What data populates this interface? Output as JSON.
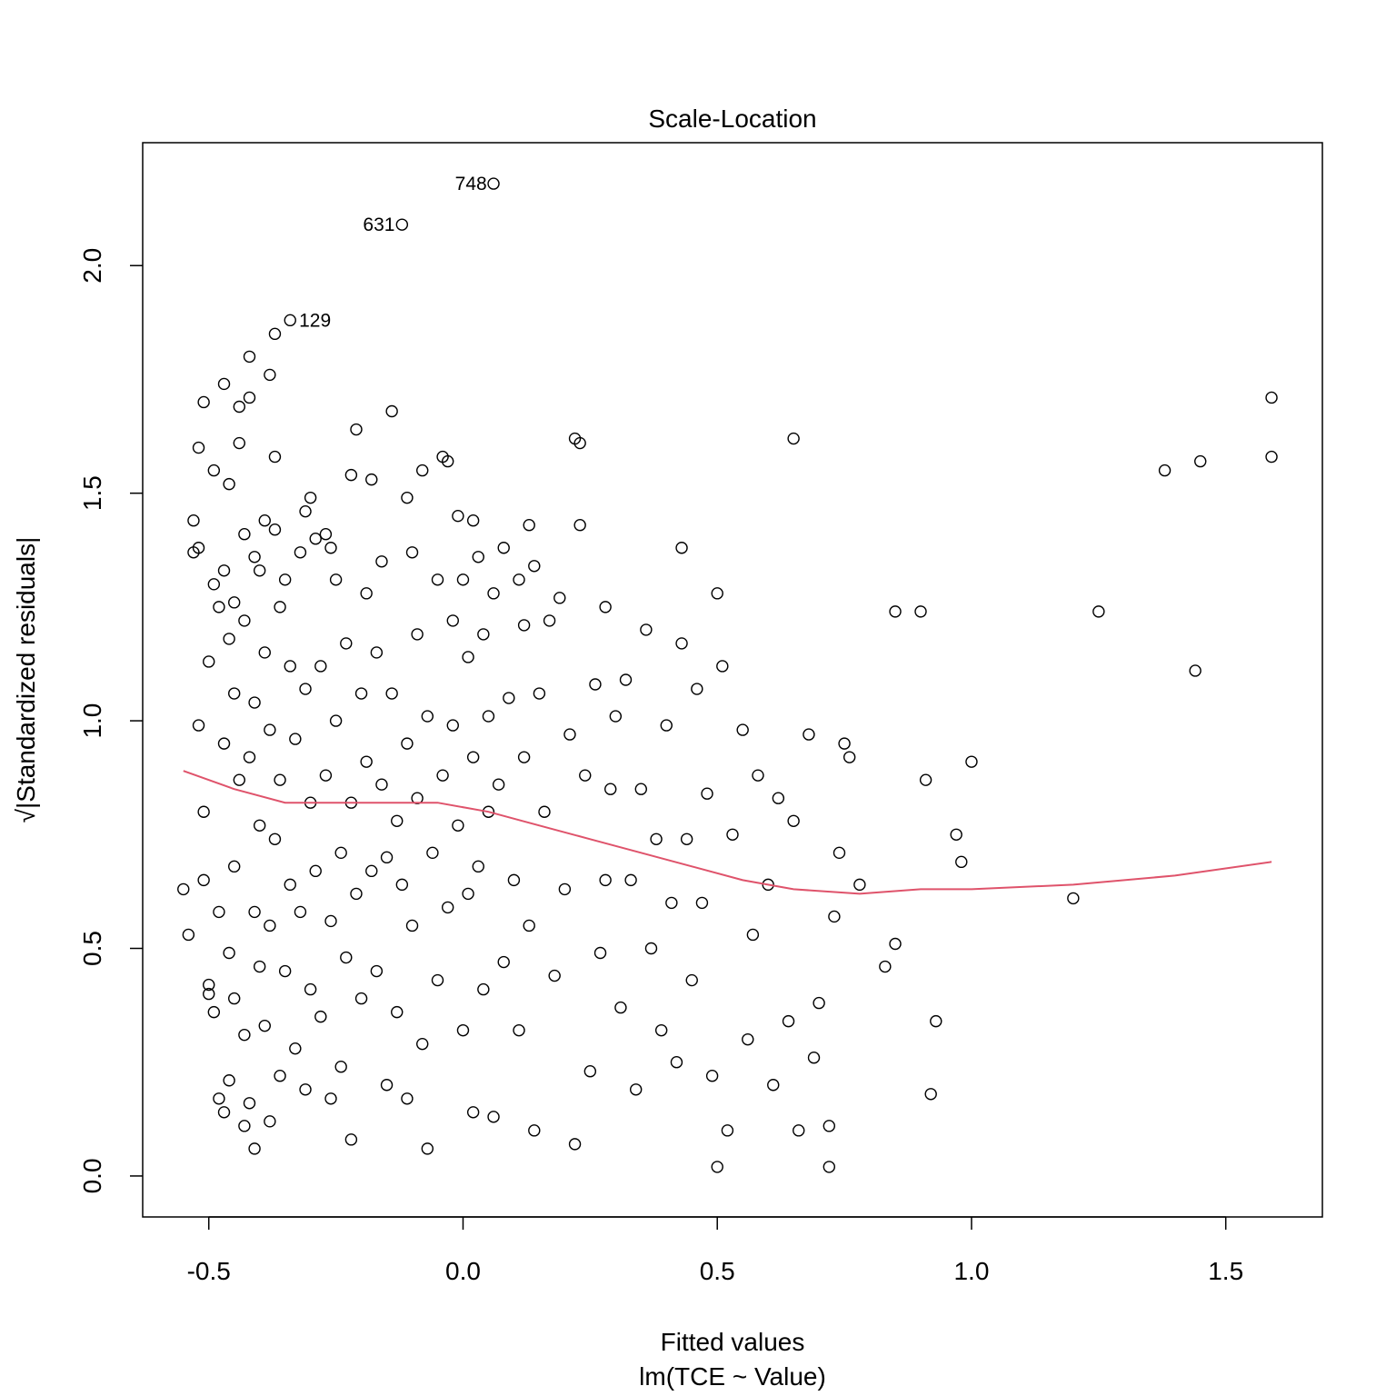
{
  "chart_data": {
    "type": "scatter",
    "title": "Scale-Location",
    "xlabel": "Fitted values",
    "xlabel_sub": "lm(TCE ~ Value)",
    "ylabel": "√|Standardized residuals|",
    "xlim": [
      -0.63,
      1.69
    ],
    "ylim": [
      -0.09,
      2.27
    ],
    "xticks": [
      -0.5,
      0.0,
      0.5,
      1.0,
      1.5
    ],
    "xtick_labels": [
      "-0.5",
      "0.0",
      "0.5",
      "1.0",
      "1.5"
    ],
    "yticks": [
      0.0,
      0.5,
      1.0,
      1.5,
      2.0
    ],
    "ytick_labels": [
      "0.0",
      "0.5",
      "1.0",
      "1.5",
      "2.0"
    ],
    "grid": false,
    "marker": "open-circle",
    "colors": {
      "points": "#000000",
      "smoother": "#DF536B",
      "frame": "#000000"
    },
    "labeled_points": [
      {
        "label": "748",
        "x": 0.063,
        "y": 2.18
      },
      {
        "label": "631",
        "x": -0.118,
        "y": 2.09
      },
      {
        "label": "129",
        "x": -0.342,
        "y": 1.88
      }
    ],
    "points": [
      [
        -0.55,
        0.63
      ],
      [
        -0.54,
        0.53
      ],
      [
        -0.53,
        1.37
      ],
      [
        -0.53,
        1.44
      ],
      [
        -0.52,
        1.38
      ],
      [
        -0.52,
        0.99
      ],
      [
        -0.52,
        1.6
      ],
      [
        -0.51,
        1.7
      ],
      [
        -0.51,
        0.8
      ],
      [
        -0.51,
        0.65
      ],
      [
        -0.5,
        1.13
      ],
      [
        -0.5,
        0.4
      ],
      [
        -0.5,
        0.42
      ],
      [
        -0.49,
        1.55
      ],
      [
        -0.49,
        1.3
      ],
      [
        -0.49,
        0.36
      ],
      [
        -0.48,
        1.25
      ],
      [
        -0.48,
        0.58
      ],
      [
        -0.48,
        0.17
      ],
      [
        -0.47,
        1.74
      ],
      [
        -0.47,
        1.33
      ],
      [
        -0.47,
        0.95
      ],
      [
        -0.47,
        0.14
      ],
      [
        -0.46,
        1.52
      ],
      [
        -0.46,
        1.18
      ],
      [
        -0.46,
        0.49
      ],
      [
        -0.46,
        0.21
      ],
      [
        -0.45,
        1.26
      ],
      [
        -0.45,
        1.06
      ],
      [
        -0.45,
        0.68
      ],
      [
        -0.45,
        0.39
      ],
      [
        -0.44,
        1.69
      ],
      [
        -0.44,
        1.61
      ],
      [
        -0.44,
        0.87
      ],
      [
        -0.43,
        1.41
      ],
      [
        -0.43,
        1.22
      ],
      [
        -0.43,
        0.31
      ],
      [
        -0.43,
        0.11
      ],
      [
        -0.42,
        1.8
      ],
      [
        -0.42,
        1.71
      ],
      [
        -0.42,
        0.92
      ],
      [
        -0.42,
        0.16
      ],
      [
        -0.41,
        1.36
      ],
      [
        -0.41,
        1.04
      ],
      [
        -0.41,
        0.58
      ],
      [
        -0.41,
        0.06
      ],
      [
        -0.4,
        1.33
      ],
      [
        -0.4,
        0.77
      ],
      [
        -0.4,
        0.46
      ],
      [
        -0.39,
        1.44
      ],
      [
        -0.39,
        1.15
      ],
      [
        -0.39,
        0.33
      ],
      [
        -0.38,
        1.76
      ],
      [
        -0.38,
        0.98
      ],
      [
        -0.38,
        0.55
      ],
      [
        -0.38,
        0.12
      ],
      [
        -0.37,
        1.85
      ],
      [
        -0.37,
        1.58
      ],
      [
        -0.37,
        1.42
      ],
      [
        -0.37,
        0.74
      ],
      [
        -0.36,
        1.25
      ],
      [
        -0.36,
        0.87
      ],
      [
        -0.36,
        0.22
      ],
      [
        -0.35,
        1.31
      ],
      [
        -0.35,
        0.45
      ],
      [
        -0.34,
        1.88
      ],
      [
        -0.34,
        1.12
      ],
      [
        -0.34,
        0.64
      ],
      [
        -0.33,
        0.96
      ],
      [
        -0.33,
        0.28
      ],
      [
        -0.32,
        1.37
      ],
      [
        -0.32,
        0.58
      ],
      [
        -0.31,
        1.46
      ],
      [
        -0.31,
        1.07
      ],
      [
        -0.31,
        0.19
      ],
      [
        -0.3,
        1.49
      ],
      [
        -0.3,
        0.82
      ],
      [
        -0.3,
        0.41
      ],
      [
        -0.29,
        1.4
      ],
      [
        -0.29,
        0.67
      ],
      [
        -0.28,
        1.12
      ],
      [
        -0.28,
        0.35
      ],
      [
        -0.27,
        1.41
      ],
      [
        -0.27,
        0.88
      ],
      [
        -0.26,
        1.38
      ],
      [
        -0.26,
        0.56
      ],
      [
        -0.26,
        0.17
      ],
      [
        -0.25,
        1.31
      ],
      [
        -0.25,
        1.0
      ],
      [
        -0.24,
        0.71
      ],
      [
        -0.24,
        0.24
      ],
      [
        -0.23,
        1.17
      ],
      [
        -0.23,
        0.48
      ],
      [
        -0.22,
        1.54
      ],
      [
        -0.22,
        0.82
      ],
      [
        -0.22,
        0.08
      ],
      [
        -0.21,
        1.64
      ],
      [
        -0.21,
        0.62
      ],
      [
        -0.2,
        1.06
      ],
      [
        -0.2,
        0.39
      ],
      [
        -0.19,
        1.28
      ],
      [
        -0.19,
        0.91
      ],
      [
        -0.18,
        1.53
      ],
      [
        -0.18,
        0.67
      ],
      [
        -0.17,
        1.15
      ],
      [
        -0.17,
        0.45
      ],
      [
        -0.16,
        1.35
      ],
      [
        -0.16,
        0.86
      ],
      [
        -0.15,
        0.7
      ],
      [
        -0.15,
        0.2
      ],
      [
        -0.14,
        1.68
      ],
      [
        -0.14,
        1.06
      ],
      [
        -0.13,
        0.78
      ],
      [
        -0.13,
        0.36
      ],
      [
        -0.12,
        2.09
      ],
      [
        -0.12,
        0.64
      ],
      [
        -0.11,
        1.49
      ],
      [
        -0.11,
        0.95
      ],
      [
        -0.11,
        0.17
      ],
      [
        -0.1,
        1.37
      ],
      [
        -0.1,
        0.55
      ],
      [
        -0.09,
        1.19
      ],
      [
        -0.09,
        0.83
      ],
      [
        -0.08,
        1.55
      ],
      [
        -0.08,
        0.29
      ],
      [
        -0.07,
        1.01
      ],
      [
        -0.07,
        0.06
      ],
      [
        -0.06,
        0.71
      ],
      [
        -0.05,
        1.31
      ],
      [
        -0.05,
        0.43
      ],
      [
        -0.04,
        1.58
      ],
      [
        -0.04,
        0.88
      ],
      [
        -0.03,
        1.57
      ],
      [
        -0.03,
        0.59
      ],
      [
        -0.02,
        1.22
      ],
      [
        -0.02,
        0.99
      ],
      [
        -0.01,
        1.45
      ],
      [
        -0.01,
        0.77
      ],
      [
        0.0,
        1.31
      ],
      [
        0.0,
        0.32
      ],
      [
        0.01,
        1.14
      ],
      [
        0.01,
        0.62
      ],
      [
        0.02,
        1.44
      ],
      [
        0.02,
        0.92
      ],
      [
        0.02,
        0.14
      ],
      [
        0.03,
        1.36
      ],
      [
        0.03,
        0.68
      ],
      [
        0.04,
        1.19
      ],
      [
        0.04,
        0.41
      ],
      [
        0.05,
        1.01
      ],
      [
        0.05,
        0.8
      ],
      [
        0.06,
        1.28
      ],
      [
        0.06,
        0.13
      ],
      [
        0.06,
        2.18
      ],
      [
        0.07,
        0.86
      ],
      [
        0.08,
        1.38
      ],
      [
        0.08,
        0.47
      ],
      [
        0.09,
        1.05
      ],
      [
        0.1,
        0.65
      ],
      [
        0.11,
        1.31
      ],
      [
        0.11,
        0.32
      ],
      [
        0.12,
        1.21
      ],
      [
        0.12,
        0.92
      ],
      [
        0.13,
        1.43
      ],
      [
        0.13,
        0.55
      ],
      [
        0.14,
        1.34
      ],
      [
        0.14,
        0.1
      ],
      [
        0.15,
        1.06
      ],
      [
        0.16,
        0.8
      ],
      [
        0.17,
        1.22
      ],
      [
        0.18,
        0.44
      ],
      [
        0.19,
        1.27
      ],
      [
        0.2,
        0.63
      ],
      [
        0.21,
        0.97
      ],
      [
        0.22,
        0.07
      ],
      [
        0.22,
        1.62
      ],
      [
        0.23,
        1.61
      ],
      [
        0.23,
        1.43
      ],
      [
        0.24,
        0.88
      ],
      [
        0.25,
        0.23
      ],
      [
        0.26,
        1.08
      ],
      [
        0.27,
        0.49
      ],
      [
        0.28,
        1.25
      ],
      [
        0.28,
        0.65
      ],
      [
        0.29,
        0.85
      ],
      [
        0.3,
        1.01
      ],
      [
        0.31,
        0.37
      ],
      [
        0.32,
        1.09
      ],
      [
        0.33,
        0.65
      ],
      [
        0.34,
        0.19
      ],
      [
        0.35,
        0.85
      ],
      [
        0.36,
        1.2
      ],
      [
        0.37,
        0.5
      ],
      [
        0.38,
        0.74
      ],
      [
        0.39,
        0.32
      ],
      [
        0.4,
        0.99
      ],
      [
        0.41,
        0.6
      ],
      [
        0.42,
        0.25
      ],
      [
        0.43,
        1.38
      ],
      [
        0.43,
        1.17
      ],
      [
        0.44,
        0.74
      ],
      [
        0.45,
        0.43
      ],
      [
        0.46,
        1.07
      ],
      [
        0.47,
        0.6
      ],
      [
        0.48,
        0.84
      ],
      [
        0.49,
        0.22
      ],
      [
        0.5,
        1.28
      ],
      [
        0.5,
        0.02
      ],
      [
        0.51,
        1.12
      ],
      [
        0.52,
        0.1
      ],
      [
        0.53,
        0.75
      ],
      [
        0.55,
        0.98
      ],
      [
        0.56,
        0.3
      ],
      [
        0.57,
        0.53
      ],
      [
        0.58,
        0.88
      ],
      [
        0.6,
        0.64
      ],
      [
        0.61,
        0.2
      ],
      [
        0.62,
        0.83
      ],
      [
        0.64,
        0.34
      ],
      [
        0.65,
        1.62
      ],
      [
        0.65,
        0.78
      ],
      [
        0.66,
        0.1
      ],
      [
        0.68,
        0.97
      ],
      [
        0.69,
        0.26
      ],
      [
        0.7,
        0.38
      ],
      [
        0.72,
        0.11
      ],
      [
        0.72,
        0.02
      ],
      [
        0.73,
        0.57
      ],
      [
        0.74,
        0.71
      ],
      [
        0.75,
        0.95
      ],
      [
        0.76,
        0.92
      ],
      [
        0.78,
        0.64
      ],
      [
        0.83,
        0.46
      ],
      [
        0.85,
        0.51
      ],
      [
        0.85,
        1.24
      ],
      [
        0.9,
        1.24
      ],
      [
        0.91,
        0.87
      ],
      [
        0.92,
        0.18
      ],
      [
        0.93,
        0.34
      ],
      [
        0.97,
        0.75
      ],
      [
        0.98,
        0.69
      ],
      [
        1.0,
        0.91
      ],
      [
        1.2,
        0.61
      ],
      [
        1.25,
        1.24
      ],
      [
        1.38,
        1.55
      ],
      [
        1.44,
        1.11
      ],
      [
        1.45,
        1.57
      ],
      [
        1.59,
        1.58
      ],
      [
        1.59,
        1.71
      ]
    ],
    "smoother": [
      [
        -0.55,
        0.89
      ],
      [
        -0.45,
        0.85
      ],
      [
        -0.35,
        0.82
      ],
      [
        -0.25,
        0.82
      ],
      [
        -0.15,
        0.82
      ],
      [
        -0.05,
        0.82
      ],
      [
        0.05,
        0.8
      ],
      [
        0.15,
        0.77
      ],
      [
        0.25,
        0.74
      ],
      [
        0.35,
        0.71
      ],
      [
        0.45,
        0.68
      ],
      [
        0.55,
        0.65
      ],
      [
        0.65,
        0.63
      ],
      [
        0.78,
        0.62
      ],
      [
        0.9,
        0.63
      ],
      [
        1.0,
        0.63
      ],
      [
        1.2,
        0.64
      ],
      [
        1.4,
        0.66
      ],
      [
        1.59,
        0.69
      ]
    ]
  }
}
